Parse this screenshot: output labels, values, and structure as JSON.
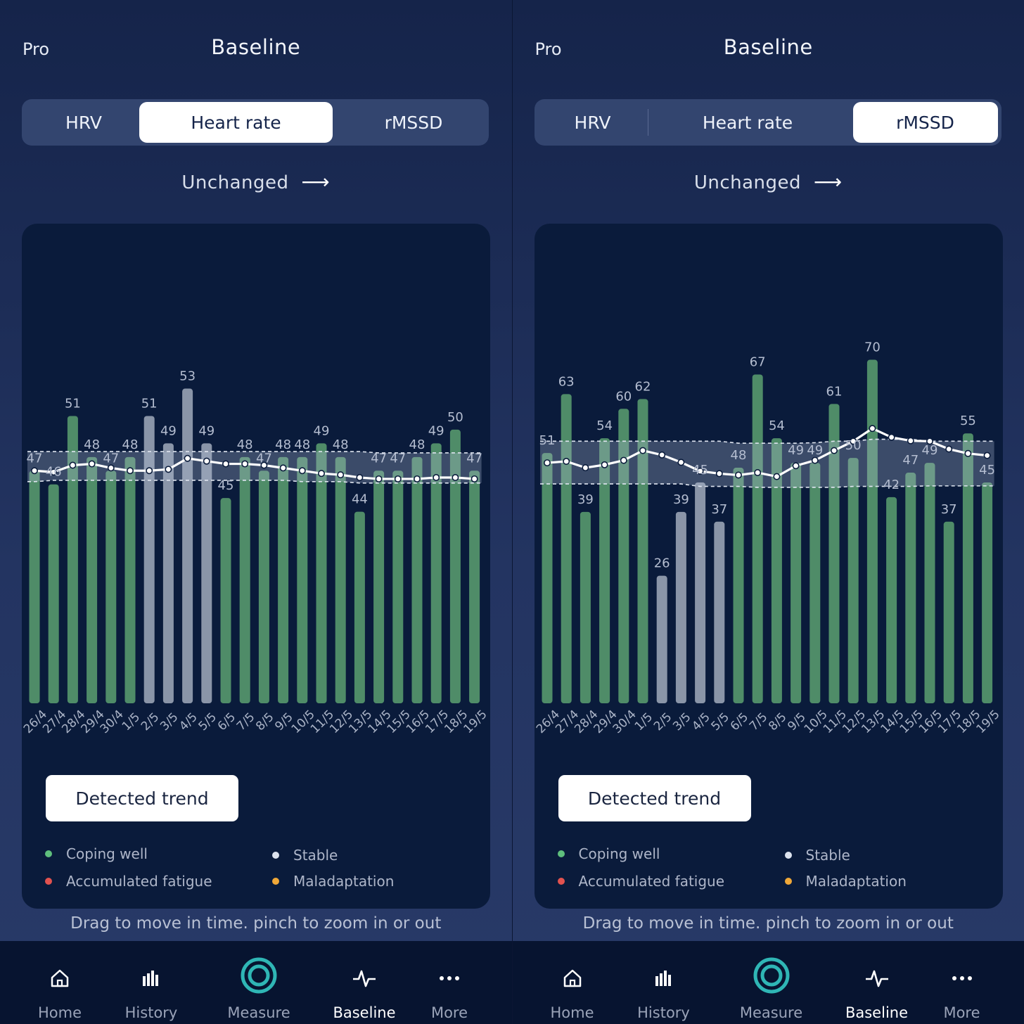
{
  "screens": [
    {
      "pro_label": "Pro",
      "title": "Baseline",
      "tabs": [
        "HRV",
        "Heart rate",
        "rMSSD"
      ],
      "active_tab": 1,
      "trend_text": "Unchanged",
      "trend_icon": "arrow-right-icon",
      "detect_button": "Detected trend",
      "legend": [
        {
          "label": "Coping well",
          "color": "#5fbf7d"
        },
        {
          "label": "Stable",
          "color": "#dde3ee"
        },
        {
          "label": "Accumulated fatigue",
          "color": "#e2524f"
        },
        {
          "label": "Maladaptation",
          "color": "#f0a838"
        }
      ],
      "hint": "Drag to move in time. pinch to zoom in or out",
      "nav": [
        {
          "label": "Home",
          "icon": "home-icon"
        },
        {
          "label": "History",
          "icon": "history-icon"
        },
        {
          "label": "Measure",
          "icon": "measure-icon"
        },
        {
          "label": "Baseline",
          "icon": "baseline-icon"
        },
        {
          "label": "More",
          "icon": "more-icon"
        }
      ],
      "active_nav": 3
    },
    {
      "pro_label": "Pro",
      "title": "Baseline",
      "tabs": [
        "HRV",
        "Heart rate",
        "rMSSD"
      ],
      "active_tab": 2,
      "trend_text": "Unchanged",
      "trend_icon": "arrow-right-icon",
      "detect_button": "Detected trend",
      "legend": [
        {
          "label": "Coping well",
          "color": "#5fbf7d"
        },
        {
          "label": "Stable",
          "color": "#dde3ee"
        },
        {
          "label": "Accumulated fatigue",
          "color": "#e2524f"
        },
        {
          "label": "Maladaptation",
          "color": "#f0a838"
        }
      ],
      "hint": "Drag to move in time. pinch to zoom in or out",
      "nav": [
        {
          "label": "Home",
          "icon": "home-icon"
        },
        {
          "label": "History",
          "icon": "history-icon"
        },
        {
          "label": "Measure",
          "icon": "measure-icon"
        },
        {
          "label": "Baseline",
          "icon": "baseline-icon"
        },
        {
          "label": "More",
          "icon": "more-icon"
        }
      ],
      "active_nav": 3
    }
  ],
  "chart_data": [
    {
      "type": "bar",
      "categories": [
        "26/4",
        "27/4",
        "28/4",
        "29/4",
        "30/4",
        "1/5",
        "2/5",
        "3/5",
        "4/5",
        "5/5",
        "6/5",
        "7/5",
        "8/5",
        "9/5",
        "10/5",
        "11/5",
        "12/5",
        "13/5",
        "14/5",
        "15/5",
        "16/5",
        "17/5",
        "18/5",
        "19/5"
      ],
      "values": [
        47,
        46,
        51,
        48,
        47,
        48,
        51,
        49,
        53,
        49,
        45,
        48,
        47,
        48,
        48,
        49,
        48,
        44,
        47,
        47,
        48,
        49,
        50,
        47
      ],
      "value_labels": [
        "47",
        "46",
        "51",
        "48",
        "47",
        "48",
        "51",
        "49",
        "53",
        "49",
        "45",
        "48",
        "47",
        "48",
        "48",
        "49",
        "48",
        "44",
        "47",
        "47",
        "48",
        "49",
        "50",
        "47"
      ],
      "colors": [
        "green",
        "green",
        "green",
        "green",
        "green",
        "green",
        "stable",
        "stable",
        "stable",
        "stable",
        "green",
        "green",
        "green",
        "green",
        "green",
        "green",
        "green",
        "green",
        "green",
        "green",
        "green",
        "green",
        "green",
        "green"
      ],
      "baseline_series": {
        "values": [
          47.0,
          46.9,
          47.4,
          47.5,
          47.2,
          47.0,
          47.0,
          47.1,
          47.9,
          47.7,
          47.5,
          47.5,
          47.4,
          47.2,
          47.0,
          46.8,
          46.7,
          46.5,
          46.4,
          46.4,
          46.4,
          46.5,
          46.5,
          46.4
        ]
      },
      "normal_band": {
        "upper": [
          48.4,
          48.4,
          48.4,
          48.4,
          48.4,
          48.4,
          48.4,
          48.4,
          48.4,
          48.4,
          48.4,
          48.4,
          48.4,
          48.4,
          48.4,
          48.4,
          48.4,
          48.4,
          48.3,
          48.3,
          48.3,
          48.3,
          48.3,
          48.3
        ],
        "lower": [
          46.2,
          46.3,
          46.3,
          46.3,
          46.3,
          46.3,
          46.3,
          46.3,
          46.3,
          46.3,
          46.3,
          46.3,
          46.3,
          46.3,
          46.2,
          46.2,
          46.2,
          46.1,
          46.1,
          46.1,
          46.1,
          46.1,
          46.1,
          46.1
        ]
      },
      "ylim": [
        30,
        63
      ]
    },
    {
      "type": "bar",
      "categories": [
        "26/4",
        "27/4",
        "28/4",
        "29/4",
        "30/4",
        "1/5",
        "2/5",
        "3/5",
        "4/5",
        "5/5",
        "6/5",
        "7/5",
        "8/5",
        "9/5",
        "10/5",
        "11/5",
        "12/5",
        "13/5",
        "14/5",
        "15/5",
        "16/5",
        "17/5",
        "18/5",
        "19/5"
      ],
      "values": [
        51,
        63,
        39,
        54,
        60,
        62,
        26,
        39,
        45,
        37,
        48,
        67,
        54,
        49,
        49,
        61,
        50,
        70,
        42,
        47,
        49,
        37,
        55,
        45
      ],
      "value_labels": [
        "51",
        "63",
        "39",
        "54",
        "60",
        "62",
        "26",
        "39",
        "45",
        "37",
        "48",
        "67",
        "54",
        "49",
        "49",
        "61",
        "50",
        "70",
        "42",
        "47",
        "49",
        "37",
        "55",
        "45"
      ],
      "colors": [
        "green",
        "green",
        "green",
        "green",
        "green",
        "green",
        "stable",
        "stable",
        "stable",
        "stable",
        "green",
        "green",
        "green",
        "green",
        "green",
        "green",
        "green",
        "green",
        "green",
        "green",
        "green",
        "green",
        "green",
        "green"
      ],
      "baseline_series": {
        "values": [
          49.0,
          49.3,
          48.0,
          48.6,
          49.5,
          51.5,
          50.6,
          49.1,
          47.3,
          46.8,
          46.5,
          47.0,
          46.2,
          48.4,
          49.5,
          51.5,
          53.4,
          56.0,
          54.2,
          53.5,
          53.4,
          51.8,
          50.9,
          50.5
        ]
      },
      "normal_band": {
        "upper": [
          53.4,
          53.4,
          53.4,
          53.4,
          53.4,
          53.4,
          53.4,
          53.4,
          53.4,
          53.4,
          53.0,
          53.0,
          53.0,
          53.0,
          53.1,
          53.4,
          53.4,
          53.8,
          53.8,
          53.8,
          53.4,
          53.4,
          53.4,
          53.4
        ],
        "lower": [
          44.7,
          44.7,
          44.7,
          44.7,
          44.7,
          44.7,
          44.7,
          44.7,
          44.2,
          44.2,
          44.2,
          44.0,
          44.0,
          44.0,
          44.0,
          44.0,
          44.2,
          44.2,
          44.2,
          44.2,
          44.3,
          44.3,
          44.3,
          44.3
        ]
      },
      "ylim": [
        0,
        92
      ]
    }
  ]
}
